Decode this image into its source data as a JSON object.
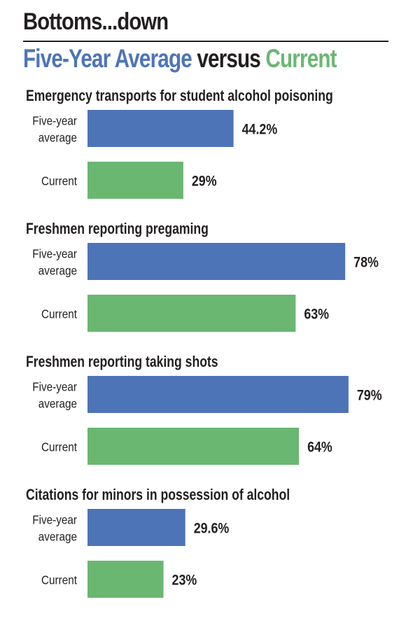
{
  "header": {
    "title": "Bottoms...down",
    "subtitle_part1": "Five-Year Average",
    "subtitle_part2": " versus ",
    "subtitle_part3": "Current"
  },
  "colors": {
    "five_year": "#4e74b8",
    "current": "#6ab772",
    "text": "#231f20"
  },
  "chart_data": {
    "type": "bar",
    "orientation": "horizontal",
    "title": "Five-Year Average versus Current",
    "unit": "%",
    "xlim": [
      0,
      100
    ],
    "series_names": [
      "Five-year average",
      "Current"
    ],
    "series_display": [
      [
        "Five-year",
        "average"
      ],
      [
        "Current"
      ]
    ],
    "groups": [
      {
        "title": "Emergency transports for student alcohol poisoning",
        "values": [
          44.2,
          29
        ],
        "labels": [
          "44.2%",
          "29%"
        ]
      },
      {
        "title": "Freshmen reporting pregaming",
        "values": [
          78,
          63
        ],
        "labels": [
          "78%",
          "63%"
        ]
      },
      {
        "title": "Freshmen reporting taking shots",
        "values": [
          79,
          64
        ],
        "labels": [
          "79%",
          "64%"
        ]
      },
      {
        "title": "Citations for minors in possession of alcohol",
        "values": [
          29.6,
          23
        ],
        "labels": [
          "29.6%",
          "23%"
        ]
      }
    ]
  }
}
